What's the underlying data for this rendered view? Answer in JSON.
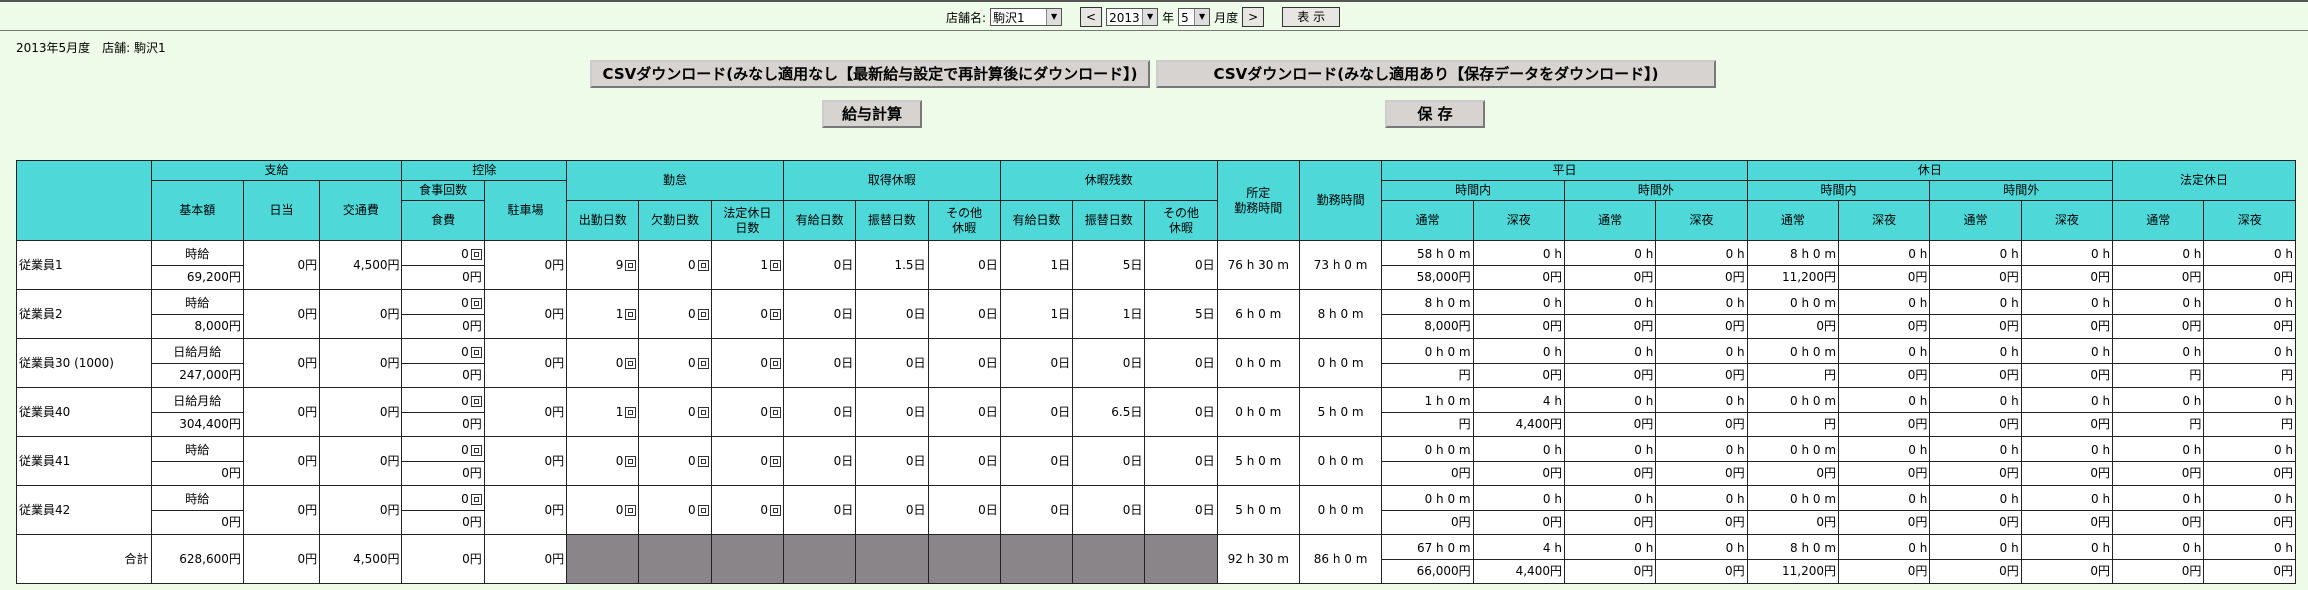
{
  "filter": {
    "store_label": "店舗名:",
    "store_value": "駒沢1",
    "prev": "<",
    "year_value": "2013",
    "year_label": "年",
    "month_value": "5",
    "month_label": "月度",
    "next": ">",
    "show": "表 示"
  },
  "info": "2013年5月度　店舗: 駒沢1",
  "buttons": {
    "csv1": "CSVダウンロード(みなし適用なし【最新給与設定で再計算後にダウンロード】)",
    "csv2": "CSVダウンロード(みなし適用あり【保存データをダウンロード】)",
    "calc": "給与計算",
    "save": "保 存"
  },
  "headers": {
    "pay": "支給",
    "deduct": "控除",
    "attend": "勤怠",
    "leave_taken": "取得休暇",
    "leave_remain": "休暇残数",
    "scheduled": "所定\n勤務時間",
    "worked": "勤務時間",
    "weekday": "平日",
    "holiday": "休日",
    "legal_holiday": "法定休日",
    "base": "基本額",
    "daily": "日当",
    "transport": "交通費",
    "meals_count": "食事回数",
    "meals": "食費",
    "parking": "駐車場",
    "work_days": "出勤日数",
    "absence_days": "欠勤日数",
    "legal_off_days": "法定休日\n日数",
    "paid_days": "有給日数",
    "sub_days": "振替日数",
    "other": "その他\n休暇",
    "within": "時間内",
    "over": "時間外",
    "normal": "通常",
    "night": "深夜"
  },
  "rows": [
    {
      "name": "従業員1",
      "pay_type": "時給",
      "base": "69,200円",
      "daily": "0円",
      "transport": "4,500円",
      "meal_count": "0",
      "meal": "0円",
      "parking": "0円",
      "work": "9",
      "absent": "0",
      "legal_off": "1",
      "paid": "0日",
      "sub": "1.5日",
      "other": "0日",
      "rpaid": "1日",
      "rsub": "5日",
      "rother": "0日",
      "sched": "76 h 30 m",
      "worked": "73 h 0 m",
      "t": [
        [
          "58 h 0 m",
          "0 h",
          "0 h",
          "0 h",
          "8 h 0 m",
          "0 h",
          "0 h",
          "0 h",
          "0 h",
          "0 h"
        ],
        [
          "58,000円",
          "0円",
          "0円",
          "0円",
          "11,200円",
          "0円",
          "0円",
          "0円",
          "0円",
          "0円"
        ]
      ]
    },
    {
      "name": "従業員2",
      "pay_type": "時給",
      "base": "8,000円",
      "daily": "0円",
      "transport": "0円",
      "meal_count": "0",
      "meal": "0円",
      "parking": "0円",
      "work": "1",
      "absent": "0",
      "legal_off": "0",
      "paid": "0日",
      "sub": "0日",
      "other": "0日",
      "rpaid": "1日",
      "rsub": "1日",
      "rother": "5日",
      "sched": "6 h 0 m",
      "worked": "8 h 0 m",
      "t": [
        [
          "8 h 0 m",
          "0 h",
          "0 h",
          "0 h",
          "0 h 0 m",
          "0 h",
          "0 h",
          "0 h",
          "0 h",
          "0 h"
        ],
        [
          "8,000円",
          "0円",
          "0円",
          "0円",
          "0円",
          "0円",
          "0円",
          "0円",
          "0円",
          "0円"
        ]
      ]
    },
    {
      "name": "従業員30 (1000)",
      "pay_type": "日給月給",
      "base": "247,000円",
      "daily": "0円",
      "transport": "0円",
      "meal_count": "0",
      "meal": "0円",
      "parking": "0円",
      "work": "0",
      "absent": "0",
      "legal_off": "0",
      "paid": "0日",
      "sub": "0日",
      "other": "0日",
      "rpaid": "0日",
      "rsub": "0日",
      "rother": "0日",
      "sched": "0 h 0 m",
      "worked": "0 h 0 m",
      "t": [
        [
          "0 h 0 m",
          "0 h",
          "0 h",
          "0 h",
          "0 h 0 m",
          "0 h",
          "0 h",
          "0 h",
          "0 h",
          "0 h"
        ],
        [
          "円",
          "0円",
          "0円",
          "0円",
          "円",
          "0円",
          "0円",
          "0円",
          "円",
          "円"
        ]
      ]
    },
    {
      "name": "従業員40",
      "pay_type": "日給月給",
      "base": "304,400円",
      "daily": "0円",
      "transport": "0円",
      "meal_count": "0",
      "meal": "0円",
      "parking": "0円",
      "work": "1",
      "absent": "0",
      "legal_off": "0",
      "paid": "0日",
      "sub": "0日",
      "other": "0日",
      "rpaid": "0日",
      "rsub": "6.5日",
      "rother": "0日",
      "sched": "0 h 0 m",
      "worked": "5 h 0 m",
      "t": [
        [
          "1 h 0 m",
          "4 h",
          "0 h",
          "0 h",
          "0 h 0 m",
          "0 h",
          "0 h",
          "0 h",
          "0 h",
          "0 h"
        ],
        [
          "円",
          "4,400円",
          "0円",
          "0円",
          "円",
          "0円",
          "0円",
          "0円",
          "円",
          "円"
        ]
      ]
    },
    {
      "name": "従業員41",
      "pay_type": "時給",
      "base": "0円",
      "daily": "0円",
      "transport": "0円",
      "meal_count": "0",
      "meal": "0円",
      "parking": "0円",
      "work": "0",
      "absent": "0",
      "legal_off": "0",
      "paid": "0日",
      "sub": "0日",
      "other": "0日",
      "rpaid": "0日",
      "rsub": "0日",
      "rother": "0日",
      "sched": "5 h 0 m",
      "worked": "0 h 0 m",
      "t": [
        [
          "0 h 0 m",
          "0 h",
          "0 h",
          "0 h",
          "0 h 0 m",
          "0 h",
          "0 h",
          "0 h",
          "0 h",
          "0 h"
        ],
        [
          "0円",
          "0円",
          "0円",
          "0円",
          "0円",
          "0円",
          "0円",
          "0円",
          "0円",
          "0円"
        ]
      ]
    },
    {
      "name": "従業員42",
      "pay_type": "時給",
      "base": "0円",
      "daily": "0円",
      "transport": "0円",
      "meal_count": "0",
      "meal": "0円",
      "parking": "0円",
      "work": "0",
      "absent": "0",
      "legal_off": "0",
      "paid": "0日",
      "sub": "0日",
      "other": "0日",
      "rpaid": "0日",
      "rsub": "0日",
      "rother": "0日",
      "sched": "5 h 0 m",
      "worked": "0 h 0 m",
      "t": [
        [
          "0 h 0 m",
          "0 h",
          "0 h",
          "0 h",
          "0 h 0 m",
          "0 h",
          "0 h",
          "0 h",
          "0 h",
          "0 h"
        ],
        [
          "0円",
          "0円",
          "0円",
          "0円",
          "0円",
          "0円",
          "0円",
          "0円",
          "0円",
          "0円"
        ]
      ]
    }
  ],
  "total": {
    "label": "合計",
    "base": "628,600円",
    "daily": "0円",
    "transport": "4,500円",
    "meal": "0円",
    "parking": "0円",
    "sched": "92 h 30 m",
    "worked": "86 h 0 m",
    "t": [
      [
        "67 h 0 m",
        "4 h",
        "0 h",
        "0 h",
        "8 h 0 m",
        "0 h",
        "0 h",
        "0 h",
        "0 h",
        "0 h"
      ],
      [
        "66,000円",
        "4,400円",
        "0円",
        "0円",
        "11,200円",
        "0円",
        "0円",
        "0円",
        "0円",
        "0円"
      ]
    ]
  }
}
